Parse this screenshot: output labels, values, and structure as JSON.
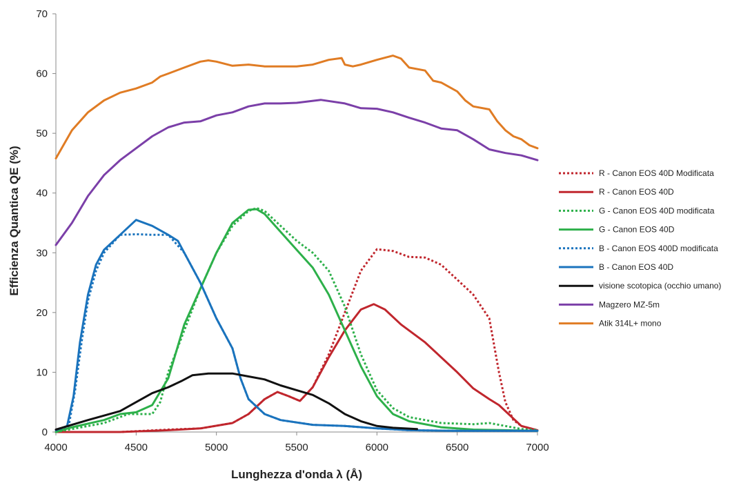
{
  "chart_data": {
    "type": "line",
    "title": "",
    "xlabel": "Lunghezza d'onda λ (Å)",
    "ylabel": "Efficienza Quantica QE (%)",
    "xlim": [
      4000,
      7000
    ],
    "ylim": [
      0,
      70
    ],
    "xticks": [
      4000,
      4500,
      5000,
      5500,
      6000,
      6500,
      7000
    ],
    "yticks": [
      0,
      10,
      20,
      30,
      40,
      50,
      60,
      70
    ],
    "grid": false,
    "legend_position": "right",
    "series": [
      {
        "name": "R - Canon EOS 40D Modificata",
        "color": "#c0262d",
        "dash": "dotted",
        "points": [
          [
            4000,
            0
          ],
          [
            4400,
            0
          ],
          [
            4700,
            0.4
          ],
          [
            4900,
            0.6
          ],
          [
            5100,
            1.5
          ],
          [
            5200,
            3
          ],
          [
            5300,
            5.5
          ],
          [
            5380,
            6.7
          ],
          [
            5450,
            6
          ],
          [
            5520,
            5.2
          ],
          [
            5600,
            7.5
          ],
          [
            5700,
            13
          ],
          [
            5800,
            20
          ],
          [
            5900,
            27
          ],
          [
            6000,
            30.6
          ],
          [
            6100,
            30.3
          ],
          [
            6200,
            29.3
          ],
          [
            6300,
            29.2
          ],
          [
            6400,
            28
          ],
          [
            6500,
            25.5
          ],
          [
            6600,
            23
          ],
          [
            6700,
            19
          ],
          [
            6760,
            10
          ],
          [
            6800,
            5
          ],
          [
            6850,
            2
          ],
          [
            6900,
            1
          ],
          [
            7000,
            0.3
          ]
        ]
      },
      {
        "name": "R - Canon EOS 40D",
        "color": "#c0262d",
        "dash": "solid",
        "points": [
          [
            4000,
            0
          ],
          [
            4400,
            0
          ],
          [
            4700,
            0.3
          ],
          [
            4900,
            0.6
          ],
          [
            5100,
            1.5
          ],
          [
            5200,
            3
          ],
          [
            5300,
            5.5
          ],
          [
            5380,
            6.7
          ],
          [
            5450,
            6
          ],
          [
            5520,
            5.2
          ],
          [
            5600,
            7.5
          ],
          [
            5700,
            12.5
          ],
          [
            5800,
            17
          ],
          [
            5900,
            20.5
          ],
          [
            5980,
            21.4
          ],
          [
            6050,
            20.5
          ],
          [
            6150,
            18
          ],
          [
            6300,
            15
          ],
          [
            6500,
            10
          ],
          [
            6600,
            7.3
          ],
          [
            6700,
            5.5
          ],
          [
            6760,
            4.5
          ],
          [
            6820,
            3
          ],
          [
            6900,
            1
          ],
          [
            7000,
            0.3
          ]
        ]
      },
      {
        "name": "G - Canon EOS 40D modificata",
        "color": "#2db04a",
        "dash": "dotted",
        "points": [
          [
            4000,
            0
          ],
          [
            4100,
            0.5
          ],
          [
            4300,
            1.5
          ],
          [
            4450,
            3
          ],
          [
            4600,
            3
          ],
          [
            4650,
            5
          ],
          [
            4700,
            10
          ],
          [
            4800,
            17
          ],
          [
            4900,
            24
          ],
          [
            5000,
            30
          ],
          [
            5100,
            34.5
          ],
          [
            5200,
            37
          ],
          [
            5250,
            37.5
          ],
          [
            5300,
            37
          ],
          [
            5400,
            34.5
          ],
          [
            5500,
            32
          ],
          [
            5600,
            30
          ],
          [
            5700,
            27
          ],
          [
            5800,
            21
          ],
          [
            5900,
            13
          ],
          [
            6000,
            7
          ],
          [
            6100,
            4
          ],
          [
            6200,
            2.5
          ],
          [
            6400,
            1.5
          ],
          [
            6600,
            1.3
          ],
          [
            6700,
            1.5
          ],
          [
            6800,
            1
          ],
          [
            6900,
            0.5
          ],
          [
            7000,
            0.3
          ]
        ]
      },
      {
        "name": "G - Canon EOS 40D",
        "color": "#2db04a",
        "dash": "solid",
        "points": [
          [
            4000,
            0
          ],
          [
            4100,
            0.8
          ],
          [
            4300,
            2
          ],
          [
            4400,
            3
          ],
          [
            4500,
            3.3
          ],
          [
            4600,
            4.5
          ],
          [
            4700,
            9
          ],
          [
            4800,
            18
          ],
          [
            4900,
            24
          ],
          [
            5000,
            30
          ],
          [
            5100,
            35
          ],
          [
            5200,
            37.2
          ],
          [
            5250,
            37.3
          ],
          [
            5300,
            36.5
          ],
          [
            5400,
            33.5
          ],
          [
            5500,
            30.5
          ],
          [
            5600,
            27.5
          ],
          [
            5700,
            23
          ],
          [
            5800,
            17
          ],
          [
            5900,
            11
          ],
          [
            6000,
            6
          ],
          [
            6100,
            3
          ],
          [
            6200,
            1.8
          ],
          [
            6400,
            0.8
          ],
          [
            6600,
            0.4
          ],
          [
            6800,
            0.3
          ],
          [
            7000,
            0.2
          ]
        ]
      },
      {
        "name": "B - Canon EOS 400D modificata",
        "color": "#1a73bd",
        "dash": "dotted",
        "points": [
          [
            4000,
            0.3
          ],
          [
            4080,
            1
          ],
          [
            4120,
            7
          ],
          [
            4160,
            15
          ],
          [
            4200,
            22
          ],
          [
            4250,
            27
          ],
          [
            4300,
            30
          ],
          [
            4400,
            33
          ],
          [
            4500,
            33.1
          ],
          [
            4600,
            33
          ],
          [
            4700,
            33
          ],
          [
            4800,
            30
          ],
          [
            4900,
            25
          ],
          [
            5000,
            19
          ],
          [
            5100,
            14
          ],
          [
            5150,
            9
          ],
          [
            5200,
            5.5
          ],
          [
            5300,
            3
          ],
          [
            5400,
            2
          ],
          [
            5600,
            1.2
          ],
          [
            5800,
            1
          ],
          [
            6000,
            0.6
          ],
          [
            6200,
            0.3
          ],
          [
            6500,
            0.2
          ],
          [
            7000,
            0.2
          ]
        ]
      },
      {
        "name": "B - Canon EOS 40D",
        "color": "#1a73bd",
        "dash": "solid",
        "points": [
          [
            4000,
            0.3
          ],
          [
            4070,
            1
          ],
          [
            4110,
            6
          ],
          [
            4150,
            15
          ],
          [
            4200,
            23
          ],
          [
            4250,
            28
          ],
          [
            4300,
            30.5
          ],
          [
            4400,
            33
          ],
          [
            4500,
            35.5
          ],
          [
            4600,
            34.5
          ],
          [
            4700,
            33
          ],
          [
            4760,
            32
          ],
          [
            4800,
            30
          ],
          [
            4900,
            25
          ],
          [
            5000,
            19
          ],
          [
            5100,
            14
          ],
          [
            5150,
            9
          ],
          [
            5200,
            5.5
          ],
          [
            5300,
            3
          ],
          [
            5400,
            2
          ],
          [
            5600,
            1.2
          ],
          [
            5800,
            1
          ],
          [
            6000,
            0.6
          ],
          [
            6200,
            0.3
          ],
          [
            6500,
            0.2
          ],
          [
            7000,
            0.2
          ]
        ]
      },
      {
        "name": "visione scotopica (occhio umano)",
        "color": "#111111",
        "dash": "solid",
        "points": [
          [
            4000,
            0.4
          ],
          [
            4200,
            2
          ],
          [
            4400,
            3.5
          ],
          [
            4500,
            5
          ],
          [
            4600,
            6.5
          ],
          [
            4700,
            7.5
          ],
          [
            4780,
            8.5
          ],
          [
            4850,
            9.5
          ],
          [
            4950,
            9.8
          ],
          [
            5100,
            9.8
          ],
          [
            5200,
            9.3
          ],
          [
            5300,
            8.8
          ],
          [
            5400,
            7.8
          ],
          [
            5500,
            7
          ],
          [
            5600,
            6.2
          ],
          [
            5700,
            4.8
          ],
          [
            5800,
            3
          ],
          [
            5900,
            1.8
          ],
          [
            6000,
            1
          ],
          [
            6100,
            0.7
          ],
          [
            6250,
            0.5
          ]
        ]
      },
      {
        "name": "Magzero MZ-5m",
        "color": "#7b3fa8",
        "dash": "solid",
        "points": [
          [
            4000,
            31.3
          ],
          [
            4100,
            35
          ],
          [
            4200,
            39.5
          ],
          [
            4300,
            43
          ],
          [
            4400,
            45.5
          ],
          [
            4500,
            47.5
          ],
          [
            4600,
            49.5
          ],
          [
            4700,
            51
          ],
          [
            4800,
            51.8
          ],
          [
            4900,
            52
          ],
          [
            5000,
            53
          ],
          [
            5100,
            53.5
          ],
          [
            5200,
            54.5
          ],
          [
            5300,
            55
          ],
          [
            5400,
            55
          ],
          [
            5500,
            55.1
          ],
          [
            5650,
            55.6
          ],
          [
            5800,
            55
          ],
          [
            5900,
            54.2
          ],
          [
            6000,
            54.1
          ],
          [
            6100,
            53.5
          ],
          [
            6200,
            52.6
          ],
          [
            6300,
            51.8
          ],
          [
            6400,
            50.8
          ],
          [
            6500,
            50.5
          ],
          [
            6600,
            49
          ],
          [
            6700,
            47.3
          ],
          [
            6800,
            46.7
          ],
          [
            6900,
            46.3
          ],
          [
            7000,
            45.5
          ]
        ]
      },
      {
        "name": "Atik 314L+ mono",
        "color": "#e07c24",
        "dash": "solid",
        "points": [
          [
            4000,
            45.8
          ],
          [
            4100,
            50.5
          ],
          [
            4200,
            53.5
          ],
          [
            4300,
            55.5
          ],
          [
            4400,
            56.8
          ],
          [
            4500,
            57.5
          ],
          [
            4600,
            58.5
          ],
          [
            4650,
            59.5
          ],
          [
            4700,
            60
          ],
          [
            4800,
            61
          ],
          [
            4900,
            62
          ],
          [
            4950,
            62.2
          ],
          [
            5000,
            62
          ],
          [
            5100,
            61.3
          ],
          [
            5200,
            61.5
          ],
          [
            5300,
            61.2
          ],
          [
            5500,
            61.2
          ],
          [
            5600,
            61.5
          ],
          [
            5700,
            62.3
          ],
          [
            5780,
            62.6
          ],
          [
            5800,
            61.5
          ],
          [
            5850,
            61.2
          ],
          [
            5900,
            61.5
          ],
          [
            6000,
            62.3
          ],
          [
            6100,
            63
          ],
          [
            6150,
            62.5
          ],
          [
            6200,
            61
          ],
          [
            6300,
            60.5
          ],
          [
            6350,
            58.8
          ],
          [
            6400,
            58.5
          ],
          [
            6500,
            57
          ],
          [
            6550,
            55.5
          ],
          [
            6600,
            54.5
          ],
          [
            6700,
            54
          ],
          [
            6750,
            52
          ],
          [
            6800,
            50.5
          ],
          [
            6850,
            49.5
          ],
          [
            6900,
            49
          ],
          [
            6950,
            48
          ],
          [
            7000,
            47.5
          ]
        ]
      }
    ]
  }
}
